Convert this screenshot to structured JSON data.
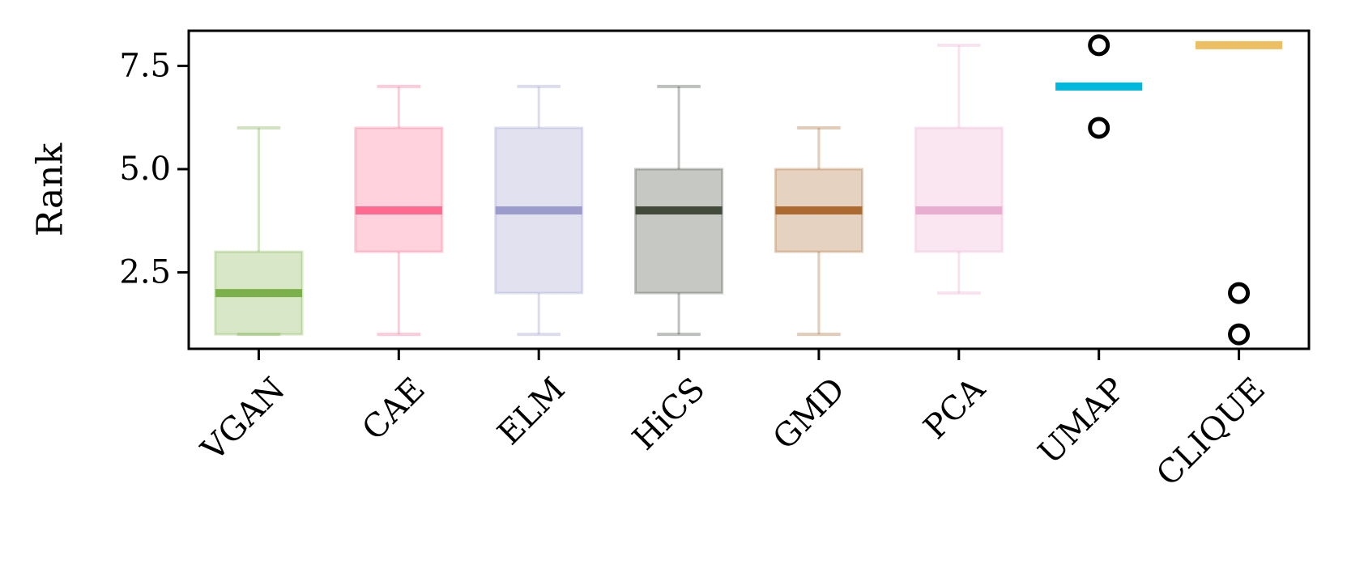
{
  "chart_data": {
    "type": "box",
    "title": "",
    "xlabel": "",
    "ylabel": "Rank",
    "ylim": [
      0.65,
      8.35
    ],
    "yticks": [
      2.5,
      5.0,
      7.5
    ],
    "ytick_labels": [
      "2.5",
      "5.0",
      "7.5"
    ],
    "grid": false,
    "legend": "none",
    "categories": [
      "VGAN",
      "CAE",
      "ELM",
      "HiCS",
      "GMD",
      "PCA",
      "UMAP",
      "CLIQUE"
    ],
    "boxes": [
      {
        "category": "VGAN",
        "whisker_low": 1,
        "q1": 1,
        "median": 2,
        "q3": 3,
        "whisker_high": 6,
        "outliers": [],
        "color": "#7bb04a"
      },
      {
        "category": "CAE",
        "whisker_low": 1,
        "q1": 3,
        "median": 4,
        "q3": 6,
        "whisker_high": 7,
        "outliers": [],
        "color": "#ff6b90"
      },
      {
        "category": "ELM",
        "whisker_low": 1,
        "q1": 2,
        "median": 4,
        "q3": 6,
        "whisker_high": 7,
        "outliers": [],
        "color": "#9b9bcc"
      },
      {
        "category": "HiCS",
        "whisker_low": 1,
        "q1": 2,
        "median": 4,
        "q3": 5,
        "whisker_high": 7,
        "outliers": [],
        "color": "#424a3c"
      },
      {
        "category": "GMD",
        "whisker_low": 1,
        "q1": 3,
        "median": 4,
        "q3": 5,
        "whisker_high": 6,
        "outliers": [],
        "color": "#ad6a30"
      },
      {
        "category": "PCA",
        "whisker_low": 2,
        "q1": 3,
        "median": 4,
        "q3": 6,
        "whisker_high": 8,
        "outliers": [],
        "color": "#eaadd2"
      },
      {
        "category": "UMAP",
        "whisker_low": 7,
        "q1": 7,
        "median": 7,
        "q3": 7,
        "whisker_high": 7,
        "outliers": [
          6,
          8
        ],
        "color": "#00b8dc"
      },
      {
        "category": "CLIQUE",
        "whisker_low": 8,
        "q1": 8,
        "median": 8,
        "q3": 8,
        "whisker_high": 8,
        "outliers": [
          1,
          2
        ],
        "color": "#ecc062"
      }
    ]
  }
}
